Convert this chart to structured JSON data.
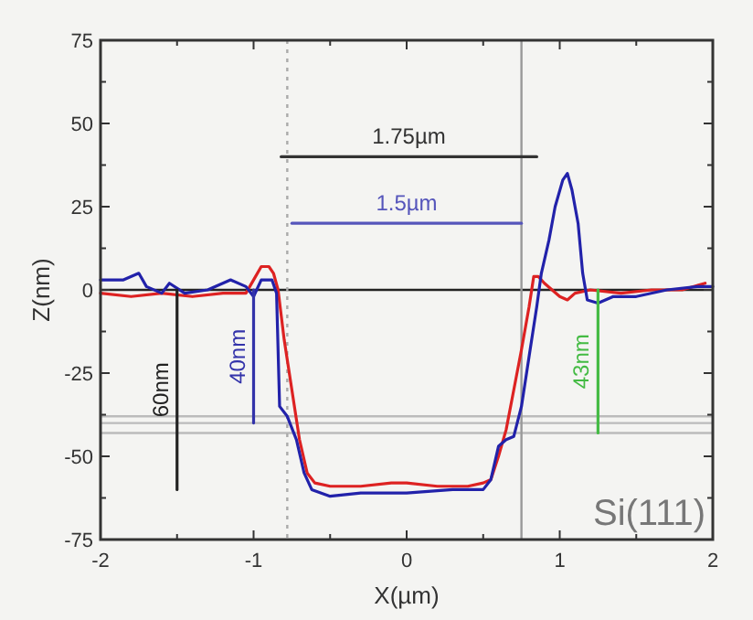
{
  "chart_data": {
    "type": "line",
    "xlabel": "X(µm)",
    "ylabel": "Z(nm)",
    "xlim": [
      -2,
      2
    ],
    "ylim": [
      -75,
      75
    ],
    "xticks": [
      -2,
      {
        "value": -1.5,
        "label": null
      },
      -1,
      {
        "value": -0.5,
        "label": null
      },
      0,
      {
        "value": 0.5,
        "label": null
      },
      1,
      {
        "value": 1.5,
        "label": null
      },
      2
    ],
    "yticks": [
      -75,
      {
        "value": -62.5,
        "label": null
      },
      -50,
      {
        "value": -37.5,
        "label": null
      },
      -25,
      {
        "value": -12.5,
        "label": null
      },
      0,
      {
        "value": 12.5,
        "label": null
      },
      25,
      {
        "value": 37.5,
        "label": null
      },
      50,
      {
        "value": 62.5,
        "label": null
      },
      75
    ],
    "grid": false,
    "line_style": "solid",
    "annotations": [
      "Si(111)"
    ],
    "ref_lines": [
      {
        "axis": "y",
        "value": 0,
        "color": "#222222",
        "line_style": "solid"
      },
      {
        "axis": "y",
        "value": -38,
        "color": "#bbbbbb",
        "line_style": "solid"
      },
      {
        "axis": "y",
        "value": -40,
        "color": "#bbbbbb",
        "line_style": "solid"
      },
      {
        "axis": "y",
        "value": -43,
        "color": "#bbbbbb",
        "line_style": "solid"
      },
      {
        "axis": "x",
        "value": -0.78,
        "color": "#aaaaaa",
        "line_style": "dotted"
      },
      {
        "axis": "x",
        "value": 0.75,
        "color": "#999999",
        "line_style": "solid"
      }
    ],
    "series": [
      {
        "color": "#dd2222",
        "x": [
          -2,
          -1.8,
          -1.6,
          -1.4,
          -1.2,
          -1.05,
          -1.0,
          -0.95,
          -0.9,
          -0.87,
          -0.84,
          -0.8,
          -0.75,
          -0.7,
          -0.65,
          -0.6,
          -0.5,
          -0.3,
          -0.1,
          0,
          0.2,
          0.4,
          0.5,
          0.55,
          0.6,
          0.65,
          0.7,
          0.75,
          0.8,
          0.83,
          0.86,
          0.9,
          1.0,
          1.05,
          1.1,
          1.2,
          1.4,
          1.6,
          1.8,
          1.95
        ],
        "values": [
          -1,
          -2,
          -1,
          -2,
          -1,
          -1,
          3,
          7,
          7,
          5,
          0,
          -15,
          -30,
          -45,
          -55,
          -58,
          -59,
          -59,
          -58,
          -58,
          -59,
          -59,
          -58,
          -57,
          -50,
          -42,
          -30,
          -18,
          -5,
          4,
          4,
          2,
          -2,
          -3,
          -1,
          0,
          -1,
          0,
          0,
          2
        ]
      },
      {
        "color": "#2222aa",
        "x": [
          -2,
          -1.85,
          -1.75,
          -1.7,
          -1.6,
          -1.55,
          -1.45,
          -1.3,
          -1.15,
          -1.05,
          -1.0,
          -0.95,
          -0.88,
          -0.85,
          -0.83,
          -0.78,
          -0.72,
          -0.67,
          -0.62,
          -0.5,
          -0.3,
          0,
          0.3,
          0.5,
          0.55,
          0.6,
          0.65,
          0.7,
          0.75,
          0.8,
          0.85,
          0.88,
          0.93,
          0.97,
          1.02,
          1.05,
          1.08,
          1.12,
          1.15,
          1.18,
          1.25,
          1.35,
          1.5,
          1.7,
          1.9,
          2
        ],
        "values": [
          3,
          3,
          5,
          1,
          -1,
          2,
          -1,
          0,
          3,
          1,
          -2,
          3,
          3,
          -1,
          -35,
          -38,
          -45,
          -55,
          -60,
          -62,
          -61,
          -61,
          -60,
          -60,
          -57,
          -47,
          -45,
          -44,
          -35,
          -20,
          -5,
          5,
          15,
          25,
          33,
          35,
          30,
          20,
          5,
          -3,
          -4,
          -2,
          -2,
          0,
          1,
          1
        ]
      },
      {
        "name": "1.75µm",
        "color": "#333333",
        "x": [
          -0.82,
          0.85
        ],
        "values": [
          40,
          40
        ]
      },
      {
        "name": "1.5µm",
        "color": "#5555bb",
        "x": [
          -0.75,
          0.75
        ],
        "values": [
          20,
          20
        ]
      },
      {
        "name": "60nm",
        "color": "#222222",
        "x": [
          -1.5,
          -1.5
        ],
        "values": [
          0,
          -60
        ]
      },
      {
        "name": "40nm",
        "color": "#3333aa",
        "x": [
          -1,
          -1
        ],
        "values": [
          0,
          -40
        ]
      },
      {
        "name": "43nm",
        "color": "#44bb44",
        "x": [
          1.25,
          1.25
        ],
        "values": [
          0,
          -43
        ]
      }
    ]
  }
}
